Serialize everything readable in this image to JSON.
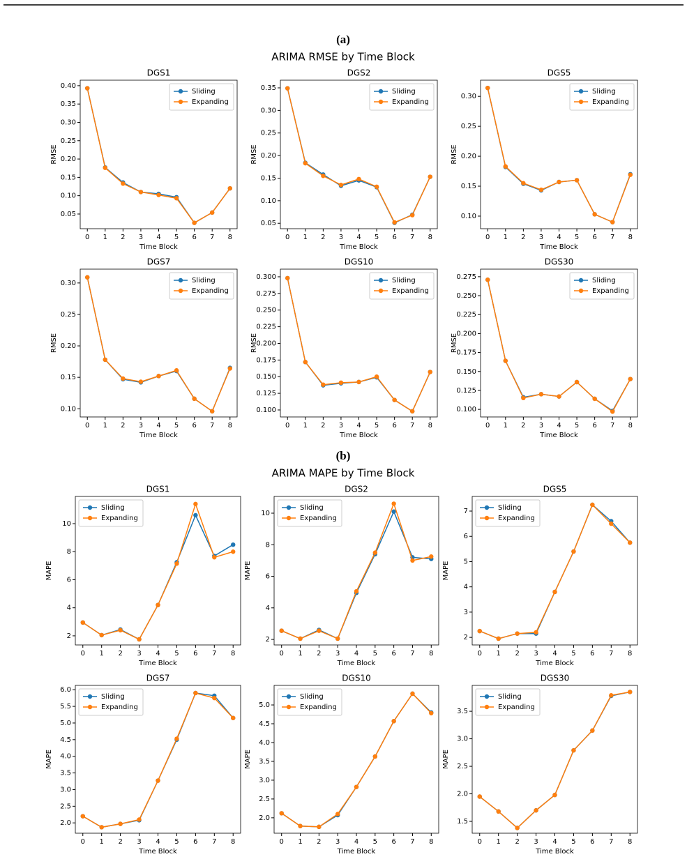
{
  "figure": {
    "panels": [
      {
        "label": "(a)",
        "title": "ARIMA RMSE by Time Block"
      },
      {
        "label": "(b)",
        "title": "ARIMA MAPE by Time Block"
      }
    ]
  },
  "chart_data": [
    {
      "type": "line",
      "title": "DGS1",
      "x_label": "Time Block",
      "y_label": "RMSE",
      "x": [
        0,
        1,
        2,
        3,
        4,
        5,
        6,
        7,
        8
      ],
      "xlim": [
        -0.4,
        8.4
      ],
      "xticks": [
        0,
        1,
        2,
        3,
        4,
        5,
        6,
        7,
        8
      ],
      "ylim": [
        0.01,
        0.415
      ],
      "yticks": [
        0.05,
        {
          "value": 0.1,
          "label": "0.10"
        },
        0.15,
        {
          "value": 0.2,
          "label": "0.20"
        },
        0.25,
        {
          "value": 0.3,
          "label": "0.30"
        },
        0.35,
        {
          "value": 0.4,
          "label": "0.40"
        }
      ],
      "legend": "upper right",
      "series": [
        {
          "name": "Sliding",
          "color": "#1f77b4",
          "values": [
            0.393,
            0.177,
            0.136,
            0.11,
            0.105,
            0.096,
            0.026,
            0.054,
            0.12
          ]
        },
        {
          "name": "Expanding",
          "color": "#ff7f0e",
          "values": [
            0.393,
            0.176,
            0.133,
            0.11,
            0.102,
            0.093,
            0.026,
            0.054,
            0.12
          ]
        }
      ]
    },
    {
      "type": "line",
      "title": "DGS2",
      "x_label": "Time Block",
      "y_label": "RMSE",
      "x": [
        0,
        1,
        2,
        3,
        4,
        5,
        6,
        7,
        8
      ],
      "xlim": [
        -0.4,
        8.4
      ],
      "xticks": [
        0,
        1,
        2,
        3,
        4,
        5,
        6,
        7,
        8
      ],
      "ylim": [
        0.038,
        0.367
      ],
      "yticks": [
        0.05,
        {
          "value": 0.1,
          "label": "0.10"
        },
        0.15,
        {
          "value": 0.2,
          "label": "0.20"
        },
        0.25,
        {
          "value": 0.3,
          "label": "0.30"
        },
        0.35
      ],
      "legend": "upper right",
      "series": [
        {
          "name": "Sliding",
          "color": "#1f77b4",
          "values": [
            0.349,
            0.184,
            0.158,
            0.133,
            0.145,
            0.13,
            0.051,
            0.069,
            0.153
          ]
        },
        {
          "name": "Expanding",
          "color": "#ff7f0e",
          "values": [
            0.349,
            0.183,
            0.155,
            0.135,
            0.148,
            0.131,
            0.052,
            0.068,
            0.153
          ]
        }
      ]
    },
    {
      "type": "line",
      "title": "DGS5",
      "x_label": "Time Block",
      "y_label": "RMSE",
      "x": [
        0,
        1,
        2,
        3,
        4,
        5,
        6,
        7,
        8
      ],
      "xlim": [
        -0.4,
        8.4
      ],
      "xticks": [
        0,
        1,
        2,
        3,
        4,
        5,
        6,
        7,
        8
      ],
      "ylim": [
        0.079,
        0.327
      ],
      "yticks": [
        {
          "value": 0.1,
          "label": "0.10"
        },
        0.15,
        {
          "value": 0.2,
          "label": "0.20"
        },
        0.25,
        {
          "value": 0.3,
          "label": "0.30"
        }
      ],
      "legend": "upper right",
      "series": [
        {
          "name": "Sliding",
          "color": "#1f77b4",
          "values": [
            0.314,
            0.182,
            0.154,
            0.143,
            0.157,
            0.16,
            0.103,
            0.09,
            0.17
          ]
        },
        {
          "name": "Expanding",
          "color": "#ff7f0e",
          "values": [
            0.314,
            0.183,
            0.155,
            0.144,
            0.157,
            0.16,
            0.103,
            0.09,
            0.169
          ]
        }
      ]
    },
    {
      "type": "line",
      "title": "DGS7",
      "x_label": "Time Block",
      "y_label": "RMSE",
      "x": [
        0,
        1,
        2,
        3,
        4,
        5,
        6,
        7,
        8
      ],
      "xlim": [
        -0.4,
        8.4
      ],
      "xticks": [
        0,
        1,
        2,
        3,
        4,
        5,
        6,
        7,
        8
      ],
      "ylim": [
        0.087,
        0.322
      ],
      "yticks": [
        {
          "value": 0.1,
          "label": "0.10"
        },
        0.15,
        {
          "value": 0.2,
          "label": "0.20"
        },
        0.25,
        {
          "value": 0.3,
          "label": "0.30"
        }
      ],
      "legend": "upper right",
      "series": [
        {
          "name": "Sliding",
          "color": "#1f77b4",
          "values": [
            0.309,
            0.178,
            0.147,
            0.142,
            0.152,
            0.16,
            0.116,
            0.096,
            0.165
          ]
        },
        {
          "name": "Expanding",
          "color": "#ff7f0e",
          "values": [
            0.309,
            0.178,
            0.148,
            0.143,
            0.152,
            0.161,
            0.116,
            0.096,
            0.164
          ]
        }
      ]
    },
    {
      "type": "line",
      "title": "DGS10",
      "x_label": "Time Block",
      "y_label": "RMSE",
      "x": [
        0,
        1,
        2,
        3,
        4,
        5,
        6,
        7,
        8
      ],
      "xlim": [
        -0.4,
        8.4
      ],
      "xticks": [
        0,
        1,
        2,
        3,
        4,
        5,
        6,
        7,
        8
      ],
      "ylim": [
        0.0895,
        0.3115
      ],
      "yticks": [
        {
          "value": 0.1,
          "label": "0.100"
        },
        0.125,
        {
          "value": 0.15,
          "label": "0.150"
        },
        0.175,
        {
          "value": 0.2,
          "label": "0.200"
        },
        0.225,
        {
          "value": 0.25,
          "label": "0.250"
        },
        0.275,
        {
          "value": 0.3,
          "label": "0.300"
        }
      ],
      "legend": "upper right",
      "series": [
        {
          "name": "Sliding",
          "color": "#1f77b4",
          "values": [
            0.298,
            0.172,
            0.137,
            0.14,
            0.142,
            0.149,
            0.115,
            0.098,
            0.157
          ]
        },
        {
          "name": "Expanding",
          "color": "#ff7f0e",
          "values": [
            0.298,
            0.172,
            0.138,
            0.141,
            0.142,
            0.15,
            0.115,
            0.098,
            0.157
          ]
        }
      ]
    },
    {
      "type": "line",
      "title": "DGS30",
      "x_label": "Time Block",
      "y_label": "RMSE",
      "x": [
        0,
        1,
        2,
        3,
        4,
        5,
        6,
        7,
        8
      ],
      "xlim": [
        -0.4,
        8.4
      ],
      "xticks": [
        0,
        1,
        2,
        3,
        4,
        5,
        6,
        7,
        8
      ],
      "ylim": [
        0.09,
        0.285
      ],
      "yticks": [
        {
          "value": 0.1,
          "label": "0.100"
        },
        0.125,
        {
          "value": 0.15,
          "label": "0.150"
        },
        0.175,
        {
          "value": 0.2,
          "label": "0.200"
        },
        0.225,
        {
          "value": 0.25,
          "label": "0.250"
        },
        0.275
      ],
      "legend": "upper right",
      "series": [
        {
          "name": "Sliding",
          "color": "#1f77b4",
          "values": [
            0.271,
            0.164,
            0.116,
            0.12,
            0.117,
            0.136,
            0.114,
            0.098,
            0.14
          ]
        },
        {
          "name": "Expanding",
          "color": "#ff7f0e",
          "values": [
            0.271,
            0.164,
            0.115,
            0.12,
            0.117,
            0.136,
            0.114,
            0.097,
            0.14
          ]
        }
      ]
    },
    {
      "type": "line",
      "title": "DGS1",
      "x_label": "Time Block",
      "y_label": "MAPE",
      "x": [
        0,
        1,
        2,
        3,
        4,
        5,
        6,
        7,
        8
      ],
      "xlim": [
        -0.4,
        8.4
      ],
      "xticks": [
        0,
        1,
        2,
        3,
        4,
        5,
        6,
        7,
        8
      ],
      "ylim": [
        1.35,
        11.94
      ],
      "yticks": [
        2,
        4,
        6,
        8,
        10
      ],
      "legend": "upper left",
      "series": [
        {
          "name": "Sliding",
          "color": "#1f77b4",
          "values": [
            2.95,
            2.05,
            2.45,
            1.75,
            4.2,
            7.25,
            10.6,
            7.7,
            8.5
          ]
        },
        {
          "name": "Expanding",
          "color": "#ff7f0e",
          "values": [
            2.95,
            2.05,
            2.4,
            1.75,
            4.2,
            7.15,
            11.4,
            7.6,
            8.0
          ]
        }
      ]
    },
    {
      "type": "line",
      "title": "DGS2",
      "x_label": "Time Block",
      "y_label": "MAPE",
      "x": [
        0,
        1,
        2,
        3,
        4,
        5,
        6,
        7,
        8
      ],
      "xlim": [
        -0.4,
        8.4
      ],
      "xticks": [
        0,
        1,
        2,
        3,
        4,
        5,
        6,
        7,
        8
      ],
      "ylim": [
        1.65,
        11.06
      ],
      "yticks": [
        2,
        4,
        6,
        8,
        10
      ],
      "legend": "upper left",
      "series": [
        {
          "name": "Sliding",
          "color": "#1f77b4",
          "values": [
            2.55,
            2.05,
            2.6,
            2.05,
            4.95,
            7.4,
            10.1,
            7.2,
            7.1
          ]
        },
        {
          "name": "Expanding",
          "color": "#ff7f0e",
          "values": [
            2.55,
            2.05,
            2.55,
            2.05,
            5.05,
            7.5,
            10.6,
            7.0,
            7.25
          ]
        }
      ]
    },
    {
      "type": "line",
      "title": "DGS5",
      "x_label": "Time Block",
      "y_label": "MAPE",
      "x": [
        0,
        1,
        2,
        3,
        4,
        5,
        6,
        7,
        8
      ],
      "xlim": [
        -0.4,
        8.4
      ],
      "xticks": [
        0,
        1,
        2,
        3,
        4,
        5,
        6,
        7,
        8
      ],
      "ylim": [
        1.7,
        7.58
      ],
      "yticks": [
        2,
        3,
        4,
        5,
        6,
        7
      ],
      "legend": "upper left",
      "series": [
        {
          "name": "Sliding",
          "color": "#1f77b4",
          "values": [
            2.25,
            1.95,
            2.15,
            2.15,
            3.8,
            5.4,
            7.25,
            6.6,
            5.75
          ]
        },
        {
          "name": "Expanding",
          "color": "#ff7f0e",
          "values": [
            2.25,
            1.95,
            2.15,
            2.2,
            3.8,
            5.4,
            7.25,
            6.5,
            5.75
          ]
        }
      ]
    },
    {
      "type": "line",
      "title": "DGS7",
      "x_label": "Time Block",
      "y_label": "MAPE",
      "x": [
        0,
        1,
        2,
        3,
        4,
        5,
        6,
        7,
        8
      ],
      "xlim": [
        -0.4,
        8.4
      ],
      "xticks": [
        0,
        1,
        2,
        3,
        4,
        5,
        6,
        7,
        8
      ],
      "ylim": [
        1.69,
        6.13
      ],
      "yticks": [
        {
          "value": 2,
          "label": "2.0"
        },
        2.5,
        {
          "value": 3,
          "label": "3.0"
        },
        3.5,
        {
          "value": 4,
          "label": "4.0"
        },
        4.5,
        {
          "value": 5,
          "label": "5.0"
        },
        5.5,
        {
          "value": 6,
          "label": "6.0"
        }
      ],
      "legend": "upper left",
      "series": [
        {
          "name": "Sliding",
          "color": "#1f77b4",
          "values": [
            2.2,
            1.87,
            1.97,
            2.08,
            3.27,
            4.5,
            5.9,
            5.82,
            5.15
          ]
        },
        {
          "name": "Expanding",
          "color": "#ff7f0e",
          "values": [
            2.2,
            1.87,
            1.97,
            2.1,
            3.27,
            4.53,
            5.9,
            5.75,
            5.15
          ]
        }
      ]
    },
    {
      "type": "line",
      "title": "DGS10",
      "x_label": "Time Block",
      "y_label": "MAPE",
      "x": [
        0,
        1,
        2,
        3,
        4,
        5,
        6,
        7,
        8
      ],
      "xlim": [
        -0.4,
        8.4
      ],
      "xticks": [
        0,
        1,
        2,
        3,
        4,
        5,
        6,
        7,
        8
      ],
      "ylim": [
        1.59,
        5.52
      ],
      "yticks": [
        {
          "value": 2,
          "label": "2.0"
        },
        2.5,
        {
          "value": 3,
          "label": "3.0"
        },
        3.5,
        {
          "value": 4,
          "label": "4.0"
        },
        4.5,
        {
          "value": 5,
          "label": "5.0"
        }
      ],
      "legend": "upper left",
      "series": [
        {
          "name": "Sliding",
          "color": "#1f77b4",
          "values": [
            2.12,
            1.78,
            1.76,
            2.07,
            2.82,
            3.63,
            4.57,
            5.3,
            4.8
          ]
        },
        {
          "name": "Expanding",
          "color": "#ff7f0e",
          "values": [
            2.12,
            1.78,
            1.76,
            2.1,
            2.82,
            3.63,
            4.57,
            5.3,
            4.78
          ]
        }
      ]
    },
    {
      "type": "line",
      "title": "DGS30",
      "x_label": "Time Block",
      "y_label": "MAPE",
      "x": [
        0,
        1,
        2,
        3,
        4,
        5,
        6,
        7,
        8
      ],
      "xlim": [
        -0.4,
        8.4
      ],
      "xticks": [
        0,
        1,
        2,
        3,
        4,
        5,
        6,
        7,
        8
      ],
      "ylim": [
        1.285,
        3.97
      ],
      "yticks": [
        1.5,
        {
          "value": 2,
          "label": "2.0"
        },
        2.5,
        {
          "value": 3,
          "label": "3.0"
        },
        3.5
      ],
      "legend": "upper left",
      "series": [
        {
          "name": "Sliding",
          "color": "#1f77b4",
          "values": [
            1.95,
            1.68,
            1.38,
            1.7,
            1.98,
            2.79,
            3.15,
            3.78,
            3.85
          ]
        },
        {
          "name": "Expanding",
          "color": "#ff7f0e",
          "values": [
            1.95,
            1.68,
            1.38,
            1.7,
            1.98,
            2.79,
            3.15,
            3.79,
            3.85
          ]
        }
      ]
    }
  ]
}
